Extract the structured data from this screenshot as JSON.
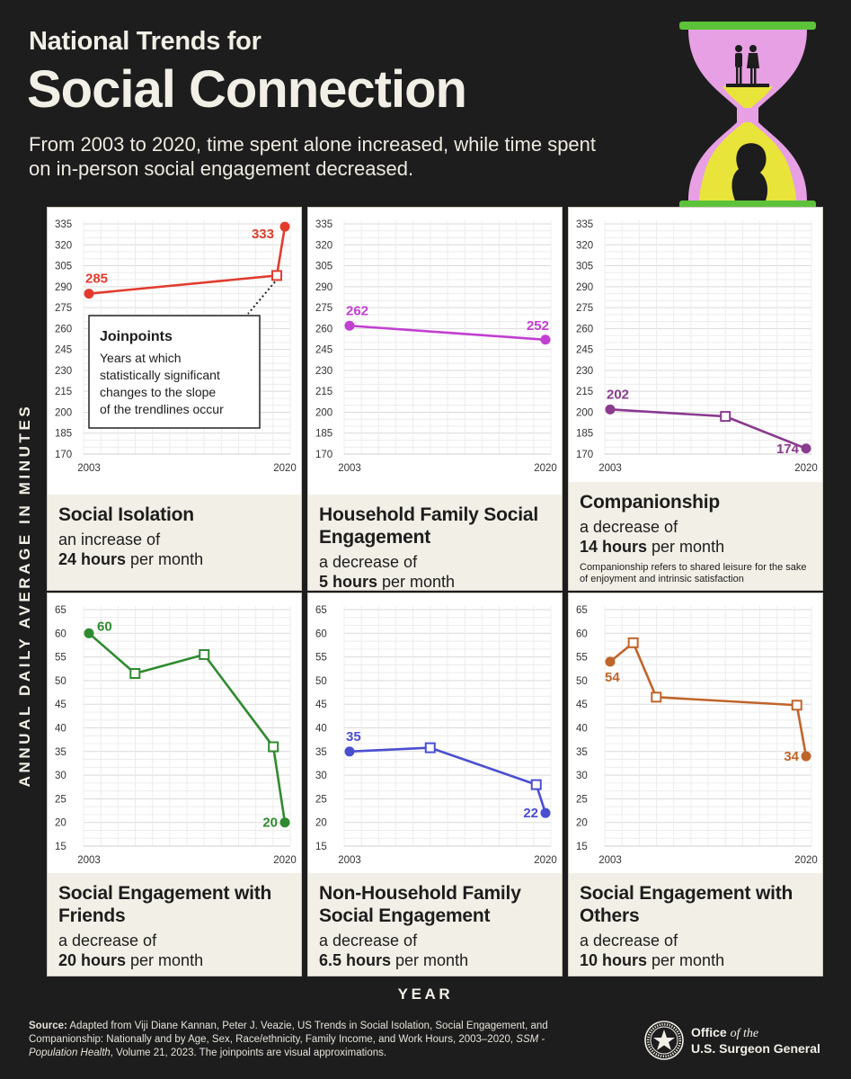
{
  "header": {
    "title_small": "National Trends for",
    "title_big": "Social Connection",
    "subtitle": "From 2003 to 2020, time spent alone increased, while time spent on in-person social engagement decreased."
  },
  "axis_labels": {
    "y": "ANNUAL DAILY AVERAGE IN MINUTES",
    "x": "YEAR"
  },
  "legend_box": {
    "title": "Joinpoints",
    "lines": [
      "Years at which",
      "statistically significant",
      "changes to the slope",
      "of the trendlines occur"
    ]
  },
  "colors": {
    "social_isolation": "#e23b2e",
    "household": "#c13fd1",
    "companionship": "#8a3a8f",
    "friends": "#2f8a2f",
    "non_household": "#4a4fd0",
    "others": "#c0642a",
    "caption_bg": "#f2efe6",
    "page_bg": "#1d1d1d"
  },
  "chart_data": [
    {
      "id": "social_isolation",
      "type": "line",
      "title": "Social Isolation",
      "desc_prefix": "an increase of",
      "desc_bold": "24 hours",
      "desc_suffix": " per month",
      "color": "#e23b2e",
      "ylim": [
        170,
        335
      ],
      "yticks": [
        335,
        320,
        305,
        290,
        275,
        260,
        245,
        230,
        215,
        200,
        185,
        170
      ],
      "xticks": [
        "2003",
        "2020"
      ],
      "points": [
        {
          "x": 2003,
          "y": 285,
          "kind": "end",
          "label": "285"
        },
        {
          "x": 2019.3,
          "y": 298,
          "kind": "joinpoint"
        },
        {
          "x": 2020,
          "y": 333,
          "kind": "end",
          "label": "333"
        }
      ]
    },
    {
      "id": "household",
      "type": "line",
      "title": "Household Family Social Engagement",
      "desc_prefix": "a decrease of",
      "desc_bold": "5 hours",
      "desc_suffix": " per month",
      "color": "#c13fd1",
      "ylim": [
        170,
        335
      ],
      "yticks": [
        335,
        320,
        305,
        290,
        275,
        260,
        245,
        230,
        215,
        200,
        185,
        170
      ],
      "xticks": [
        "2003",
        "2020"
      ],
      "points": [
        {
          "x": 2003,
          "y": 262,
          "kind": "end",
          "label": "262"
        },
        {
          "x": 2020,
          "y": 252,
          "kind": "end",
          "label": "252"
        }
      ]
    },
    {
      "id": "companionship",
      "type": "line",
      "title": "Companionship",
      "desc_prefix": "a decrease of",
      "desc_bold": "14 hours",
      "desc_suffix": " per month",
      "note": "Companionship refers to shared leisure for the sake of enjoyment and intrinsic satisfaction",
      "color": "#8a3a8f",
      "ylim": [
        170,
        335
      ],
      "yticks": [
        335,
        320,
        305,
        290,
        275,
        260,
        245,
        230,
        215,
        200,
        185,
        170
      ],
      "xticks": [
        "2003",
        "2020"
      ],
      "points": [
        {
          "x": 2003,
          "y": 202,
          "kind": "end",
          "label": "202"
        },
        {
          "x": 2013,
          "y": 197,
          "kind": "joinpoint"
        },
        {
          "x": 2020,
          "y": 174,
          "kind": "end",
          "label": "174"
        }
      ]
    },
    {
      "id": "friends",
      "type": "line",
      "title": "Social Engagement with Friends",
      "desc_prefix": "a decrease of",
      "desc_bold": "20 hours",
      "desc_suffix": " per month",
      "color": "#2f8a2f",
      "ylim": [
        15,
        65
      ],
      "yticks": [
        65,
        60,
        55,
        50,
        45,
        40,
        35,
        30,
        25,
        20,
        15
      ],
      "xticks": [
        "2003",
        "2020"
      ],
      "points": [
        {
          "x": 2003,
          "y": 60,
          "kind": "end",
          "label": "60"
        },
        {
          "x": 2007,
          "y": 51.5,
          "kind": "joinpoint"
        },
        {
          "x": 2013,
          "y": 55.5,
          "kind": "joinpoint"
        },
        {
          "x": 2019,
          "y": 36,
          "kind": "joinpoint"
        },
        {
          "x": 2020,
          "y": 20,
          "kind": "end",
          "label": "20"
        }
      ]
    },
    {
      "id": "non_household",
      "type": "line",
      "title": "Non-Household Family Social Engagement",
      "desc_prefix": "a decrease of",
      "desc_bold": "6.5 hours",
      "desc_suffix": " per month",
      "color": "#4a4fd0",
      "ylim": [
        15,
        65
      ],
      "yticks": [
        65,
        60,
        55,
        50,
        45,
        40,
        35,
        30,
        25,
        20,
        15
      ],
      "xticks": [
        "2003",
        "2020"
      ],
      "points": [
        {
          "x": 2003,
          "y": 35,
          "kind": "end",
          "label": "35"
        },
        {
          "x": 2010,
          "y": 35.8,
          "kind": "joinpoint"
        },
        {
          "x": 2019.2,
          "y": 28,
          "kind": "joinpoint"
        },
        {
          "x": 2020,
          "y": 22,
          "kind": "end",
          "label": "22"
        }
      ]
    },
    {
      "id": "others",
      "type": "line",
      "title": "Social Engagement with Others",
      "desc_prefix": "a decrease of",
      "desc_bold": "10 hours",
      "desc_suffix": " per month",
      "color": "#c0642a",
      "ylim": [
        15,
        65
      ],
      "yticks": [
        65,
        60,
        55,
        50,
        45,
        40,
        35,
        30,
        25,
        20,
        15
      ],
      "xticks": [
        "2003",
        "2020"
      ],
      "points": [
        {
          "x": 2003,
          "y": 54,
          "kind": "end",
          "label": "54"
        },
        {
          "x": 2005,
          "y": 58,
          "kind": "joinpoint"
        },
        {
          "x": 2007,
          "y": 46.5,
          "kind": "joinpoint"
        },
        {
          "x": 2019.2,
          "y": 44.8,
          "kind": "joinpoint"
        },
        {
          "x": 2020,
          "y": 34,
          "kind": "end",
          "label": "34"
        }
      ]
    }
  ],
  "footer": {
    "source_label": "Source:",
    "source_text": " Adapted from Viji Diane Kannan, Peter J. Veazie, US Trends in Social Isolation, Social Engagement, and Companionship: Nationally and by Age, Sex, Race/ethnicity, Family Income, and Work Hours, 2003–2020, ",
    "source_journal": "SSM - Population Health",
    "source_tail": ", Volume 21, 2023. The joinpoints are visual approximations.",
    "office_line1_a": "Office ",
    "office_line1_b": "of the",
    "office_line2": "U.S. Surgeon General"
  }
}
